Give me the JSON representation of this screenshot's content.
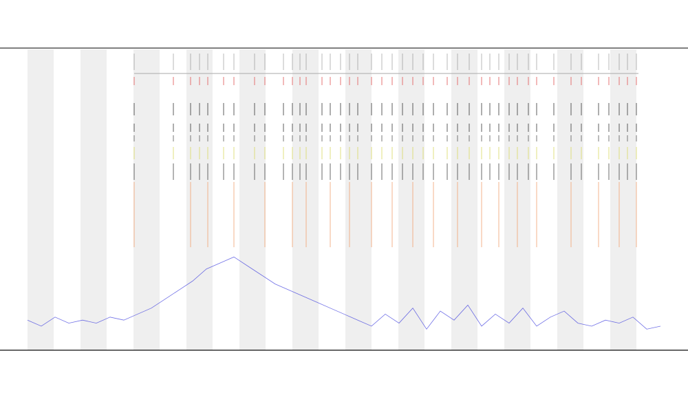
{
  "chart_data": {
    "type": "line",
    "xlim": [
      0,
      920
    ],
    "ylim": [
      0,
      100
    ],
    "series": [
      {
        "color": "#4a4ae0",
        "x": [
          0,
          20,
          40,
          60,
          80,
          100,
          120,
          140,
          160,
          180,
          200,
          220,
          240,
          260,
          280,
          300,
          320,
          340,
          360,
          380,
          400,
          420,
          440,
          460,
          480,
          500,
          520,
          540,
          560,
          580,
          600,
          620,
          640,
          660,
          680,
          700,
          720,
          740,
          760,
          780,
          800,
          820,
          840,
          860,
          880,
          900,
          920
        ],
        "values": [
          10,
          8,
          11,
          9,
          10,
          9,
          11,
          10,
          12,
          14,
          17,
          20,
          23,
          27,
          29,
          31,
          28,
          25,
          22,
          20,
          18,
          16,
          14,
          12,
          10,
          8,
          12,
          9,
          14,
          7,
          13,
          10,
          15,
          8,
          12,
          9,
          14,
          8,
          11,
          13,
          9,
          8,
          10,
          9,
          11,
          7,
          8
        ]
      }
    ],
    "events": {
      "x": [
        155,
        212,
        237,
        250,
        262,
        285,
        300,
        330,
        345,
        372,
        385,
        396,
        405,
        428,
        440,
        455,
        468,
        480,
        500,
        515,
        530,
        545,
        560,
        575,
        590,
        610,
        625,
        642,
        660,
        672,
        685,
        700,
        712,
        728,
        740,
        765,
        790,
        805,
        830,
        845,
        860,
        872,
        885
      ]
    }
  }
}
